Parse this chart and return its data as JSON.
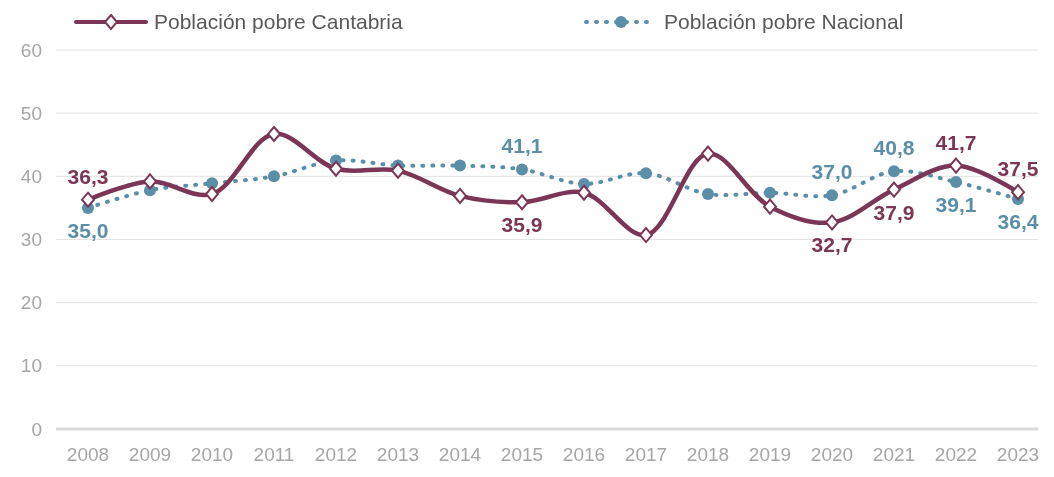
{
  "chart_data": {
    "type": "line",
    "categories": [
      "2008",
      "2009",
      "2010",
      "2011",
      "2012",
      "2013",
      "2014",
      "2015",
      "2016",
      "2017",
      "2018",
      "2019",
      "2020",
      "2021",
      "2022",
      "2023"
    ],
    "series": [
      {
        "name": "Población pobre Cantabria",
        "color": "#7b3655",
        "marker": "diamond",
        "line_style": "solid",
        "values": [
          36.3,
          39.2,
          37.2,
          46.7,
          41.2,
          40.9,
          36.9,
          35.9,
          37.4,
          30.7,
          43.6,
          35.2,
          32.7,
          37.9,
          41.7,
          37.5
        ],
        "value_labels": [
          "36,3",
          null,
          null,
          null,
          null,
          null,
          null,
          "35,9",
          null,
          null,
          null,
          null,
          "32,7",
          "37,9",
          "41,7",
          "37,5"
        ]
      },
      {
        "name": "Población pobre Nacional",
        "color": "#5b8fa8",
        "marker": "circle",
        "line_style": "dotted",
        "values": [
          35.0,
          37.8,
          38.9,
          40.0,
          42.5,
          41.7,
          41.7,
          41.1,
          38.8,
          40.5,
          37.2,
          37.4,
          37.0,
          40.8,
          39.1,
          36.4
        ],
        "value_labels": [
          "35,0",
          null,
          null,
          null,
          null,
          null,
          null,
          "41,1",
          null,
          null,
          null,
          null,
          "37,0",
          "40,8",
          "39,1",
          "36,4"
        ]
      }
    ],
    "ylim": [
      0,
      60
    ],
    "yticks": [
      0,
      10,
      20,
      30,
      40,
      50,
      60
    ],
    "grid": "y",
    "legend": "top left"
  }
}
